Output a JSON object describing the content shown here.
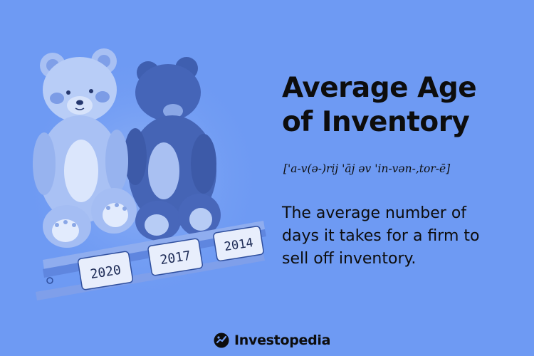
{
  "term": {
    "title_line1": "Average Age",
    "title_line2": "of Inventory",
    "pronunciation": "['a-v(ə-)rij 'āj əv 'in-vən-,tor-ē]",
    "definition_line1": "The average number of",
    "definition_line2": "days it takes for a firm to",
    "definition_line3": "sell off inventory."
  },
  "illustration": {
    "year_labels": [
      "2020",
      "2017",
      "2014"
    ]
  },
  "brand": {
    "name": "Investopedia",
    "logo_icon": "investopedia-logo-icon"
  },
  "colors": {
    "background": "#6e9af3",
    "text": "#0d0d0d"
  }
}
